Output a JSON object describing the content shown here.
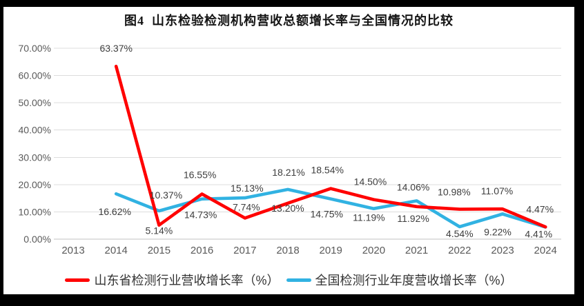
{
  "window": {
    "frame_color": "#000000",
    "canvas_color": "#ffffff"
  },
  "chart_data": {
    "type": "line",
    "title": "图4  山东检验检测机构营收总额增长率与全国情况的比较",
    "categories": [
      "2013",
      "2014",
      "2015",
      "2016",
      "2017",
      "2018",
      "2019",
      "2020",
      "2021",
      "2022",
      "2023",
      "2024"
    ],
    "y_axis": {
      "min": 0,
      "max": 70,
      "step": 10,
      "tick_labels": [
        "0.00%",
        "10.00%",
        "20.00%",
        "30.00%",
        "40.00%",
        "50.00%",
        "60.00%",
        "70.00%"
      ],
      "format": "percent"
    },
    "grid": true,
    "legend_position": "bottom",
    "colors": {
      "gridline": "#dcdcdc",
      "axis_line": "#c2c2c2",
      "tick_label": "#595959",
      "data_label": "#3d3d3d"
    },
    "series": [
      {
        "name": "山东省检测行业营收增长率（%）",
        "color": "#ff0000",
        "start_category_index": 1,
        "values": [
          63.37,
          5.14,
          16.55,
          7.74,
          13.2,
          18.54,
          14.5,
          11.92,
          10.98,
          11.07,
          4.47
        ],
        "data_labels": [
          "63.37%",
          "5.14%",
          "16.55%",
          "7.74%",
          "13.20%",
          "18.54%",
          "14.50%",
          "11.92%",
          "10.98%",
          "11.07%",
          "4.47%"
        ],
        "label_offsets": [
          [
            0,
            -26
          ],
          [
            0,
            8
          ],
          [
            -3,
            -28
          ],
          [
            2,
            -16
          ],
          [
            0,
            7
          ],
          [
            -5,
            -27
          ],
          [
            -5,
            -26
          ],
          [
            -5,
            17
          ],
          [
            -8,
            -25
          ],
          [
            -8,
            -26
          ],
          [
            -8,
            -26
          ]
        ]
      },
      {
        "name": "全国检测行业年度营收增长率（%）",
        "color": "#31b2e2",
        "start_category_index": 1,
        "values": [
          16.62,
          10.37,
          14.73,
          15.13,
          18.21,
          14.75,
          11.19,
          14.06,
          4.54,
          9.22,
          4.41
        ],
        "data_labels": [
          "16.62%",
          "10.37%",
          "14.73%",
          "15.13%",
          "18.21%",
          "14.75%",
          "11.19%",
          "14.06%",
          "4.54%",
          "9.22%",
          "4.41%"
        ],
        "label_offsets": [
          [
            -2,
            26
          ],
          [
            10,
            -23
          ],
          [
            -2,
            23
          ],
          [
            3,
            -14
          ],
          [
            1,
            -25
          ],
          [
            -6,
            22
          ],
          [
            -7,
            13
          ],
          [
            -5,
            -20
          ],
          [
            0,
            10
          ],
          [
            -7,
            26
          ],
          [
            -10,
            10
          ]
        ]
      }
    ]
  }
}
